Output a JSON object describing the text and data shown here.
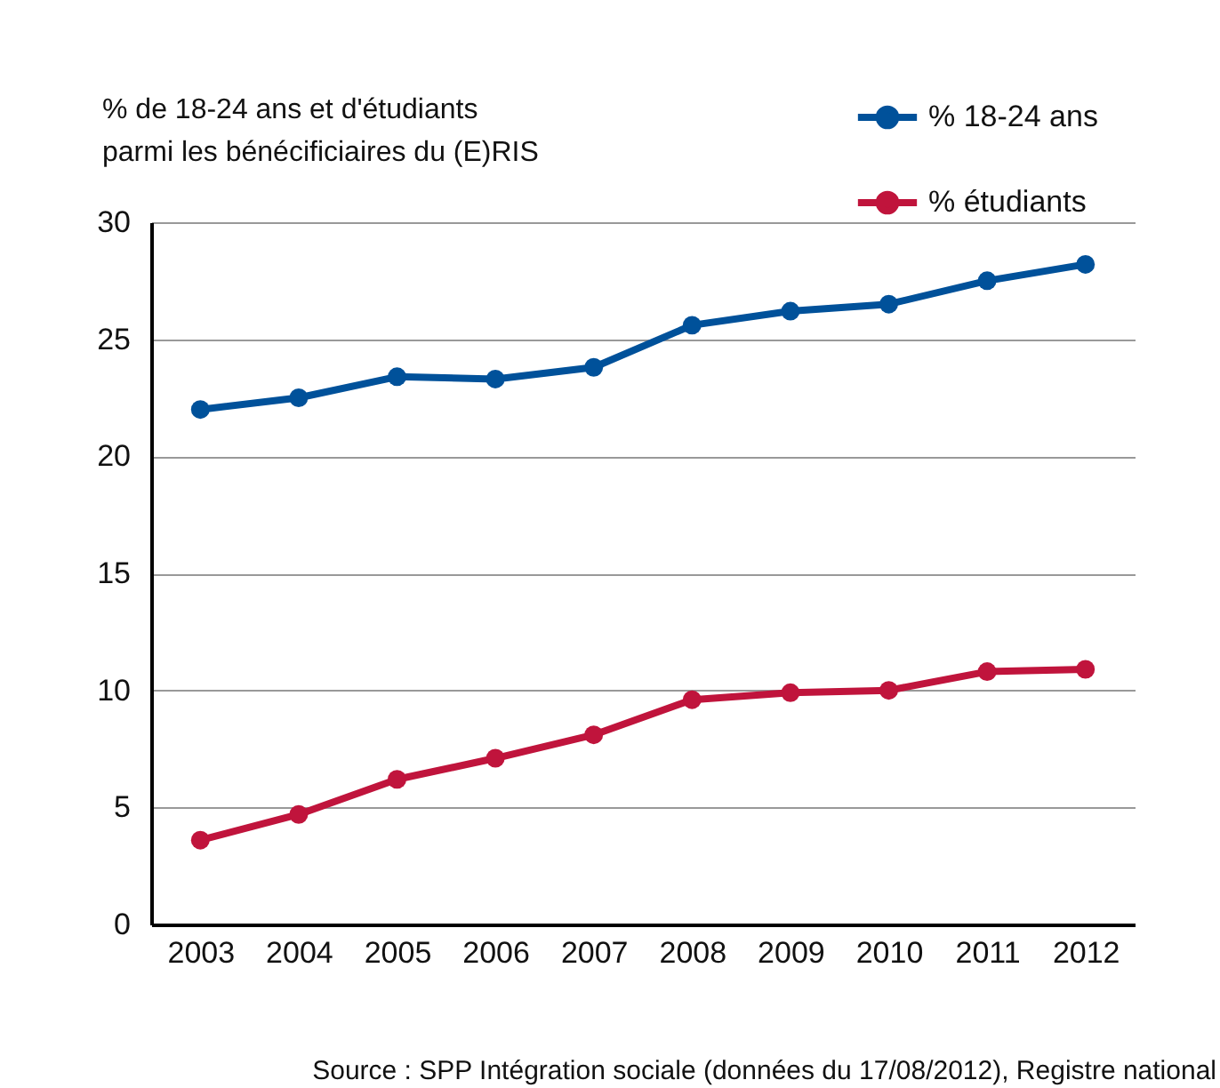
{
  "chart_data": {
    "type": "line",
    "ylabel": "% de 18-24 ans et d'étudiants\nparmi les bénécificiaires du (E)RIS",
    "categories": [
      "2003",
      "2004",
      "2005",
      "2006",
      "2007",
      "2008",
      "2009",
      "2010",
      "2011",
      "2012"
    ],
    "series": [
      {
        "name": "% 18-24 ans",
        "color": "#00519a",
        "values": [
          22.0,
          22.5,
          23.4,
          23.3,
          23.8,
          25.6,
          26.2,
          26.5,
          27.5,
          28.2
        ]
      },
      {
        "name": "% étudiants",
        "color": "#c0143c",
        "values": [
          3.6,
          4.7,
          6.2,
          7.1,
          8.1,
          9.6,
          9.9,
          10.0,
          10.8,
          10.9
        ]
      }
    ],
    "ylim": [
      0,
      30
    ],
    "yticks": [
      0,
      5,
      10,
      15,
      20,
      25,
      30
    ],
    "grid": "y",
    "legend": "top right",
    "marker": "circle",
    "line_style": "solid",
    "annotations": [
      "Source : SPP Intégration sociale (données du 17/08/2012), Registre national"
    ]
  }
}
